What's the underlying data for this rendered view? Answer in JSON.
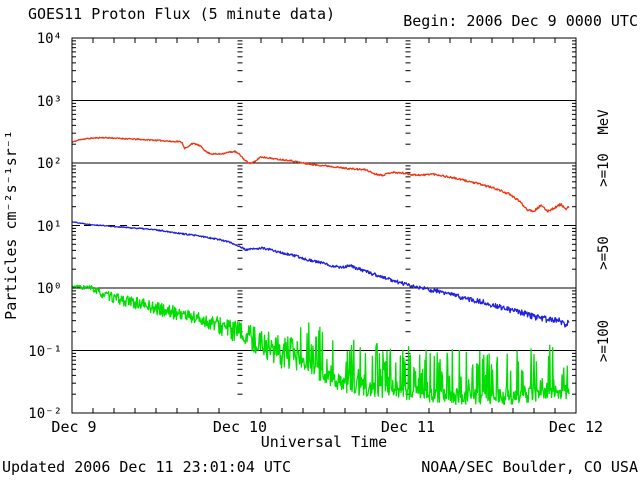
{
  "header": {
    "title": "GOES11 Proton Flux (5 minute data)",
    "begin_label": "Begin: 2006 Dec 9 0000 UTC"
  },
  "footer": {
    "updated": "Updated 2006 Dec 11 23:01:04 UTC",
    "credit": "NOAA/SEC Boulder, CO USA"
  },
  "colors": {
    "ge10": "#f3320e",
    "ge50": "#2121dd",
    "ge100": "#00dd00",
    "axis": "#000000",
    "background": "#ffffff"
  },
  "chart_data": {
    "type": "line",
    "title": "GOES11 Proton Flux (5 minute data)",
    "xlabel": "Universal Time",
    "ylabel": "Particles cm⁻²s⁻¹sr⁻¹",
    "legend_title": "MeV",
    "x_start": "2006 Dec 9 0000 UTC",
    "x_days": 3,
    "x_tick_labels": [
      "Dec 9",
      "Dec 10",
      "Dec 11",
      "Dec 12"
    ],
    "y_tick_labels": [
      "10⁴",
      "10³",
      "10²",
      "10¹",
      "10⁰",
      "10⁻¹",
      "10⁻²"
    ],
    "ylim": [
      0.01,
      10000
    ],
    "y_log": true,
    "grid_hlines_solid": [
      1000,
      100,
      1,
      0.1
    ],
    "grid_hlines_dashed": [
      10
    ],
    "grid_vlines_days": [
      1,
      2
    ],
    "minor_x_ticks_hours": 3,
    "end_day": 2.96,
    "series": [
      {
        "name": ">=10",
        "color": "#f3320e",
        "seed": 11,
        "noise_log10": [
          [
            0,
            0.009
          ],
          [
            1.5,
            0.012
          ],
          [
            3,
            0.018
          ]
        ],
        "points": [
          [
            0,
            215
          ],
          [
            0.05,
            238
          ],
          [
            0.12,
            250
          ],
          [
            0.18,
            255
          ],
          [
            0.25,
            250
          ],
          [
            0.33,
            244
          ],
          [
            0.42,
            237
          ],
          [
            0.5,
            231
          ],
          [
            0.56,
            226
          ],
          [
            0.6,
            220
          ],
          [
            0.63,
            222
          ],
          [
            0.655,
            215
          ],
          [
            0.67,
            172
          ],
          [
            0.69,
            178
          ],
          [
            0.71,
            205
          ],
          [
            0.74,
            200
          ],
          [
            0.77,
            182
          ],
          [
            0.8,
            150
          ],
          [
            0.83,
            140
          ],
          [
            0.87,
            139
          ],
          [
            0.9,
            142
          ],
          [
            0.93,
            148
          ],
          [
            0.97,
            153
          ],
          [
            1.0,
            135
          ],
          [
            1.03,
            110
          ],
          [
            1.06,
            99
          ],
          [
            1.09,
            105
          ],
          [
            1.12,
            125
          ],
          [
            1.16,
            122
          ],
          [
            1.22,
            115
          ],
          [
            1.3,
            110
          ],
          [
            1.38,
            99
          ],
          [
            1.45,
            93
          ],
          [
            1.52,
            90
          ],
          [
            1.6,
            84
          ],
          [
            1.68,
            80
          ],
          [
            1.75,
            78
          ],
          [
            1.8,
            67
          ],
          [
            1.85,
            64
          ],
          [
            1.9,
            71
          ],
          [
            1.97,
            69
          ],
          [
            2.03,
            65
          ],
          [
            2.09,
            64
          ],
          [
            2.14,
            67
          ],
          [
            2.2,
            63
          ],
          [
            2.28,
            57
          ],
          [
            2.36,
            51
          ],
          [
            2.44,
            45
          ],
          [
            2.52,
            39
          ],
          [
            2.6,
            32
          ],
          [
            2.66,
            25
          ],
          [
            2.71,
            18
          ],
          [
            2.75,
            17
          ],
          [
            2.79,
            21
          ],
          [
            2.83,
            17
          ],
          [
            2.87,
            19
          ],
          [
            2.91,
            22
          ],
          [
            2.94,
            18
          ],
          [
            2.96,
            20
          ]
        ]
      },
      {
        "name": ">=50",
        "color": "#2121dd",
        "seed": 22,
        "noise_log10": [
          [
            0,
            0.006
          ],
          [
            1,
            0.015
          ],
          [
            2,
            0.03
          ],
          [
            3,
            0.055
          ]
        ],
        "points": [
          [
            0,
            11.5
          ],
          [
            0.08,
            10.6
          ],
          [
            0.16,
            10.1
          ],
          [
            0.24,
            9.7
          ],
          [
            0.32,
            9.3
          ],
          [
            0.4,
            9.0
          ],
          [
            0.48,
            8.6
          ],
          [
            0.56,
            8.1
          ],
          [
            0.64,
            7.5
          ],
          [
            0.72,
            7.0
          ],
          [
            0.8,
            6.5
          ],
          [
            0.86,
            6.1
          ],
          [
            0.92,
            5.6
          ],
          [
            0.97,
            5.0
          ],
          [
            1.0,
            4.6
          ],
          [
            1.03,
            4.1
          ],
          [
            1.08,
            4.2
          ],
          [
            1.13,
            4.35
          ],
          [
            1.18,
            4.1
          ],
          [
            1.24,
            3.7
          ],
          [
            1.32,
            3.3
          ],
          [
            1.4,
            2.85
          ],
          [
            1.48,
            2.55
          ],
          [
            1.54,
            2.3
          ],
          [
            1.6,
            2.15
          ],
          [
            1.66,
            2.25
          ],
          [
            1.72,
            1.95
          ],
          [
            1.8,
            1.65
          ],
          [
            1.88,
            1.4
          ],
          [
            1.96,
            1.2
          ],
          [
            2.02,
            1.08
          ],
          [
            2.08,
            1.0
          ],
          [
            2.14,
            0.92
          ],
          [
            2.2,
            0.86
          ],
          [
            2.28,
            0.76
          ],
          [
            2.36,
            0.66
          ],
          [
            2.44,
            0.6
          ],
          [
            2.52,
            0.52
          ],
          [
            2.6,
            0.45
          ],
          [
            2.68,
            0.4
          ],
          [
            2.76,
            0.34
          ],
          [
            2.84,
            0.31
          ],
          [
            2.9,
            0.3
          ],
          [
            2.93,
            0.26
          ],
          [
            2.96,
            0.3
          ]
        ]
      },
      {
        "name": ">=100",
        "color": "#00dd00",
        "seed": 33,
        "noise_log10": [
          [
            0,
            0.02
          ],
          [
            0.1,
            0.05
          ],
          [
            0.3,
            0.09
          ],
          [
            0.8,
            0.12
          ],
          [
            1.05,
            0.2
          ],
          [
            1.35,
            0.3
          ]
        ],
        "spikes": {
          "start": 1.35,
          "prob": 0.3,
          "max_log10": 0.75,
          "base_jitter_log10": 0.12
        },
        "floor": 0.0125,
        "points": [
          [
            0,
            1.05
          ],
          [
            0.06,
            1.03
          ],
          [
            0.12,
            0.98
          ],
          [
            0.18,
            0.8
          ],
          [
            0.26,
            0.68
          ],
          [
            0.34,
            0.6
          ],
          [
            0.42,
            0.55
          ],
          [
            0.5,
            0.47
          ],
          [
            0.58,
            0.42
          ],
          [
            0.66,
            0.38
          ],
          [
            0.74,
            0.33
          ],
          [
            0.82,
            0.28
          ],
          [
            0.9,
            0.24
          ],
          [
            0.98,
            0.2
          ],
          [
            1.06,
            0.16
          ],
          [
            1.14,
            0.13
          ],
          [
            1.22,
            0.1
          ],
          [
            1.3,
            0.085
          ],
          [
            1.38,
            0.06
          ],
          [
            1.46,
            0.045
          ],
          [
            1.54,
            0.035
          ],
          [
            1.62,
            0.028
          ],
          [
            1.75,
            0.024
          ],
          [
            1.9,
            0.022
          ],
          [
            2.1,
            0.02
          ],
          [
            2.3,
            0.018
          ],
          [
            2.5,
            0.018
          ],
          [
            2.7,
            0.018
          ],
          [
            2.8,
            0.022
          ],
          [
            2.96,
            0.022
          ]
        ]
      }
    ]
  }
}
